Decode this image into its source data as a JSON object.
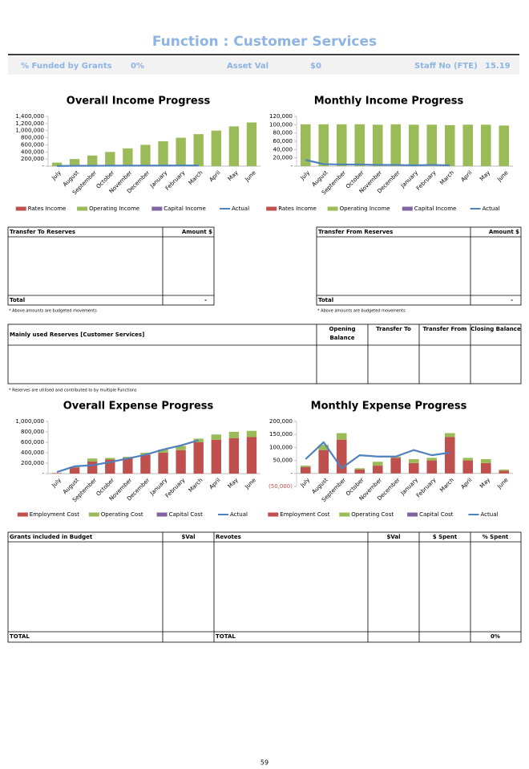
{
  "header": {
    "title": "Function : Customer Services",
    "fields": [
      {
        "label": "% Funded by Grants",
        "value": "0%"
      },
      {
        "label": "Asset Val",
        "value": "$0"
      },
      {
        "label": "Staff No (FTE)",
        "value": "15.19"
      }
    ]
  },
  "chart_data": [
    {
      "type": "bar",
      "title": "Overall Income Progress",
      "categories": [
        "July",
        "August",
        "September",
        "October",
        "November",
        "December",
        "January",
        "February",
        "March",
        "April",
        "May",
        "June"
      ],
      "ylim": [
        0,
        1400000
      ],
      "yticks": [
        {
          "value": 0,
          "label": "-"
        },
        {
          "value": 200000,
          "label": "200,000"
        },
        {
          "value": 400000,
          "label": "400,000"
        },
        {
          "value": 600000,
          "label": "600,000"
        },
        {
          "value": 800000,
          "label": "800,000"
        },
        {
          "value": 1000000,
          "label": "1,000,000"
        },
        {
          "value": 1200000,
          "label": "1,200,000"
        },
        {
          "value": 1400000,
          "label": "1,400,000"
        }
      ],
      "series": [
        {
          "name": "Rates Income",
          "type": "bar",
          "color": "#c0504d",
          "values": [
            0,
            0,
            0,
            0,
            0,
            0,
            0,
            0,
            0,
            0,
            0,
            0
          ]
        },
        {
          "name": "Operating Income",
          "type": "bar",
          "color": "#9bbb59",
          "values": [
            100000,
            200000,
            300000,
            400000,
            500000,
            600000,
            700000,
            800000,
            900000,
            1000000,
            1120000,
            1230000
          ]
        },
        {
          "name": "Capital Income",
          "type": "bar",
          "color": "#8064a2",
          "values": [
            0,
            0,
            0,
            0,
            0,
            0,
            0,
            0,
            0,
            0,
            0,
            0
          ]
        },
        {
          "name": "Actual",
          "type": "line",
          "color": "#4f81bd",
          "values": [
            5000,
            10000,
            12000,
            14000,
            15000,
            16000,
            17000,
            18000,
            20000,
            null,
            null,
            null
          ]
        }
      ]
    },
    {
      "type": "bar",
      "title": "Monthly Income Progress",
      "categories": [
        "July",
        "August",
        "September",
        "October",
        "November",
        "December",
        "January",
        "February",
        "March",
        "April",
        "May",
        "June"
      ],
      "ylim": [
        0,
        120000
      ],
      "yticks": [
        {
          "value": 0,
          "label": "-"
        },
        {
          "value": 20000,
          "label": "20,000"
        },
        {
          "value": 40000,
          "label": "40,000"
        },
        {
          "value": 60000,
          "label": "60,000"
        },
        {
          "value": 80000,
          "label": "80,000"
        },
        {
          "value": 100000,
          "label": "100,000"
        },
        {
          "value": 120000,
          "label": "120,000"
        }
      ],
      "series": [
        {
          "name": "Rates Income",
          "type": "bar",
          "color": "#c0504d",
          "values": [
            0,
            0,
            0,
            0,
            0,
            0,
            0,
            0,
            0,
            0,
            0,
            0
          ]
        },
        {
          "name": "Operating Income",
          "type": "bar",
          "color": "#9bbb59",
          "values": [
            101000,
            101000,
            101000,
            101000,
            100000,
            101000,
            100000,
            100000,
            99000,
            100000,
            100000,
            98000
          ]
        },
        {
          "name": "Capital Income",
          "type": "bar",
          "color": "#8064a2",
          "values": [
            0,
            0,
            0,
            0,
            0,
            0,
            0,
            0,
            0,
            0,
            0,
            0
          ]
        },
        {
          "name": "Actual",
          "type": "line",
          "color": "#4f81bd",
          "values": [
            15000,
            5000,
            4000,
            4000,
            3000,
            3000,
            2000,
            3000,
            2000,
            null,
            null,
            null
          ]
        }
      ]
    },
    {
      "type": "bar",
      "title": "Overall Expense Progress",
      "categories": [
        "July",
        "August",
        "September",
        "October",
        "November",
        "December",
        "January",
        "February",
        "March",
        "April",
        "May",
        "June"
      ],
      "ylim": [
        0,
        1000000
      ],
      "yticks": [
        {
          "value": 0,
          "label": "-"
        },
        {
          "value": 200000,
          "label": "200,000"
        },
        {
          "value": 400000,
          "label": "400,000"
        },
        {
          "value": 600000,
          "label": "600,000"
        },
        {
          "value": 800000,
          "label": "800,000"
        },
        {
          "value": 1000000,
          "label": "1,000,000"
        }
      ],
      "series": [
        {
          "name": "Employment Cost",
          "type": "bar",
          "color": "#c0504d",
          "values": [
            10000,
            120000,
            230000,
            270000,
            300000,
            360000,
            400000,
            450000,
            600000,
            650000,
            680000,
            700000
          ]
        },
        {
          "name": "Operating Cost",
          "type": "bar",
          "color": "#9bbb59",
          "values": [
            0,
            10000,
            60000,
            30000,
            20000,
            40000,
            60000,
            80000,
            70000,
            100000,
            120000,
            120000
          ]
        },
        {
          "name": "Capital Cost",
          "type": "bar",
          "color": "#8064a2",
          "values": [
            0,
            0,
            0,
            0,
            0,
            0,
            0,
            0,
            0,
            0,
            0,
            0
          ]
        },
        {
          "name": "Actual",
          "type": "line",
          "color": "#4f81bd",
          "values": [
            30000,
            140000,
            160000,
            220000,
            290000,
            360000,
            460000,
            540000,
            640000,
            null,
            null,
            null
          ]
        }
      ]
    },
    {
      "type": "bar",
      "title": "Monthly Expense Progress",
      "categories": [
        "July",
        "August",
        "September",
        "October",
        "November",
        "December",
        "January",
        "February",
        "March",
        "April",
        "May",
        "June"
      ],
      "ylim": [
        -50000,
        200000
      ],
      "yticks": [
        {
          "value": -50000,
          "label": "(50,000)"
        },
        {
          "value": 0,
          "label": "-"
        },
        {
          "value": 50000,
          "label": "50,000"
        },
        {
          "value": 100000,
          "label": "100,000"
        },
        {
          "value": 150000,
          "label": "150,000"
        },
        {
          "value": 200000,
          "label": "200,000"
        }
      ],
      "series": [
        {
          "name": "Employment Cost",
          "type": "bar",
          "color": "#c0504d",
          "values": [
            25000,
            90000,
            130000,
            15000,
            30000,
            60000,
            40000,
            50000,
            140000,
            50000,
            40000,
            10000
          ]
        },
        {
          "name": "Operating Cost",
          "type": "bar",
          "color": "#9bbb59",
          "values": [
            5000,
            20000,
            25000,
            5000,
            15000,
            5000,
            15000,
            10000,
            15000,
            10000,
            15000,
            5000
          ]
        },
        {
          "name": "Capital Cost",
          "type": "bar",
          "color": "#8064a2",
          "values": [
            0,
            0,
            0,
            0,
            0,
            0,
            0,
            0,
            0,
            0,
            0,
            0
          ]
        },
        {
          "name": "Actual",
          "type": "line",
          "color": "#4f81bd",
          "values": [
            55000,
            120000,
            20000,
            70000,
            65000,
            65000,
            90000,
            70000,
            80000,
            null,
            null,
            null
          ]
        }
      ]
    }
  ],
  "transfer_to": {
    "headers": [
      "Transfer To Reserves",
      "Amount $"
    ],
    "total": [
      "Total",
      "-"
    ],
    "note": "* Above amounts are budgeted movements"
  },
  "transfer_from": {
    "headers": [
      "Transfer From Reserves",
      "Amount $"
    ],
    "total": [
      "Total",
      "-"
    ],
    "note": "* Above amounts are budgeted movements"
  },
  "reserves": {
    "headers": [
      "Mainly used Reserves [Customer Services]",
      "Opening Balance",
      "Transfer To",
      "Transfer From",
      "Closing Balance"
    ],
    "note": "* Reserves are utilised and contributed to by multiple Functions"
  },
  "grants": {
    "headers": [
      "Grants included in Budget",
      "$Val",
      "Revotes",
      "$Val",
      "$ Spent",
      "% Spent"
    ],
    "total": {
      "grants": "TOTAL",
      "revotes": "TOTAL",
      "spent_pct": "0%"
    }
  },
  "page_number": "59"
}
